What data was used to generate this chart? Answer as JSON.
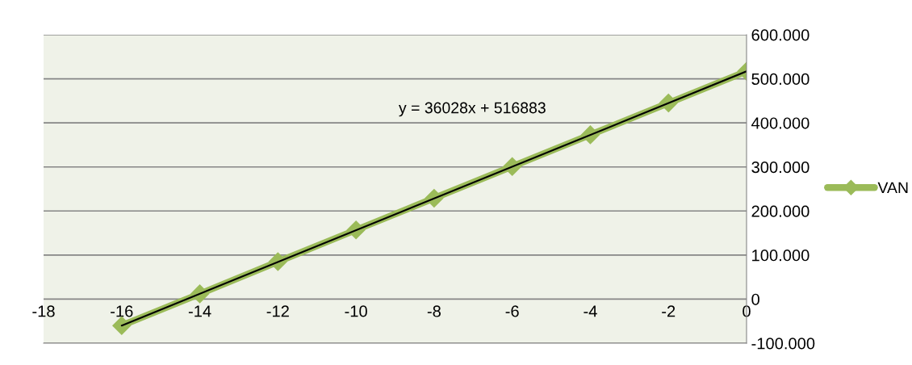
{
  "chart_data": {
    "type": "line",
    "x": [
      -16,
      -14,
      -12,
      -10,
      -8,
      -6,
      -4,
      -2,
      0
    ],
    "series": [
      {
        "name": "VAN",
        "color": "#9bbb59",
        "values": [
          -60000,
          12000,
          85000,
          157000,
          229000,
          301000,
          373000,
          445000,
          517000
        ],
        "marker": "diamond"
      },
      {
        "type": "line",
        "color": "#000000",
        "x": [
          -16,
          0
        ],
        "values": [
          -60000,
          517000
        ],
        "marker": "none"
      }
    ],
    "annotations": [
      "y = 36028x + 516883"
    ],
    "xlim": [
      -18,
      0
    ],
    "xticks": [
      -18,
      -16,
      -14,
      -12,
      -10,
      -8,
      -6,
      -4,
      -2,
      0
    ],
    "ylim": [
      -100000,
      600000
    ],
    "yticks": [
      {
        "value": -100000,
        "label": "-100.000"
      },
      0,
      {
        "value": 100000,
        "label": "100.000"
      },
      {
        "value": 200000,
        "label": "200.000"
      },
      {
        "value": 300000,
        "label": "300.000"
      },
      {
        "value": 400000,
        "label": "400.000"
      },
      {
        "value": 500000,
        "label": "500.000"
      },
      {
        "value": 600000,
        "label": "600.000"
      }
    ],
    "grid": "y",
    "legend": "right",
    "line_style": "solid"
  }
}
